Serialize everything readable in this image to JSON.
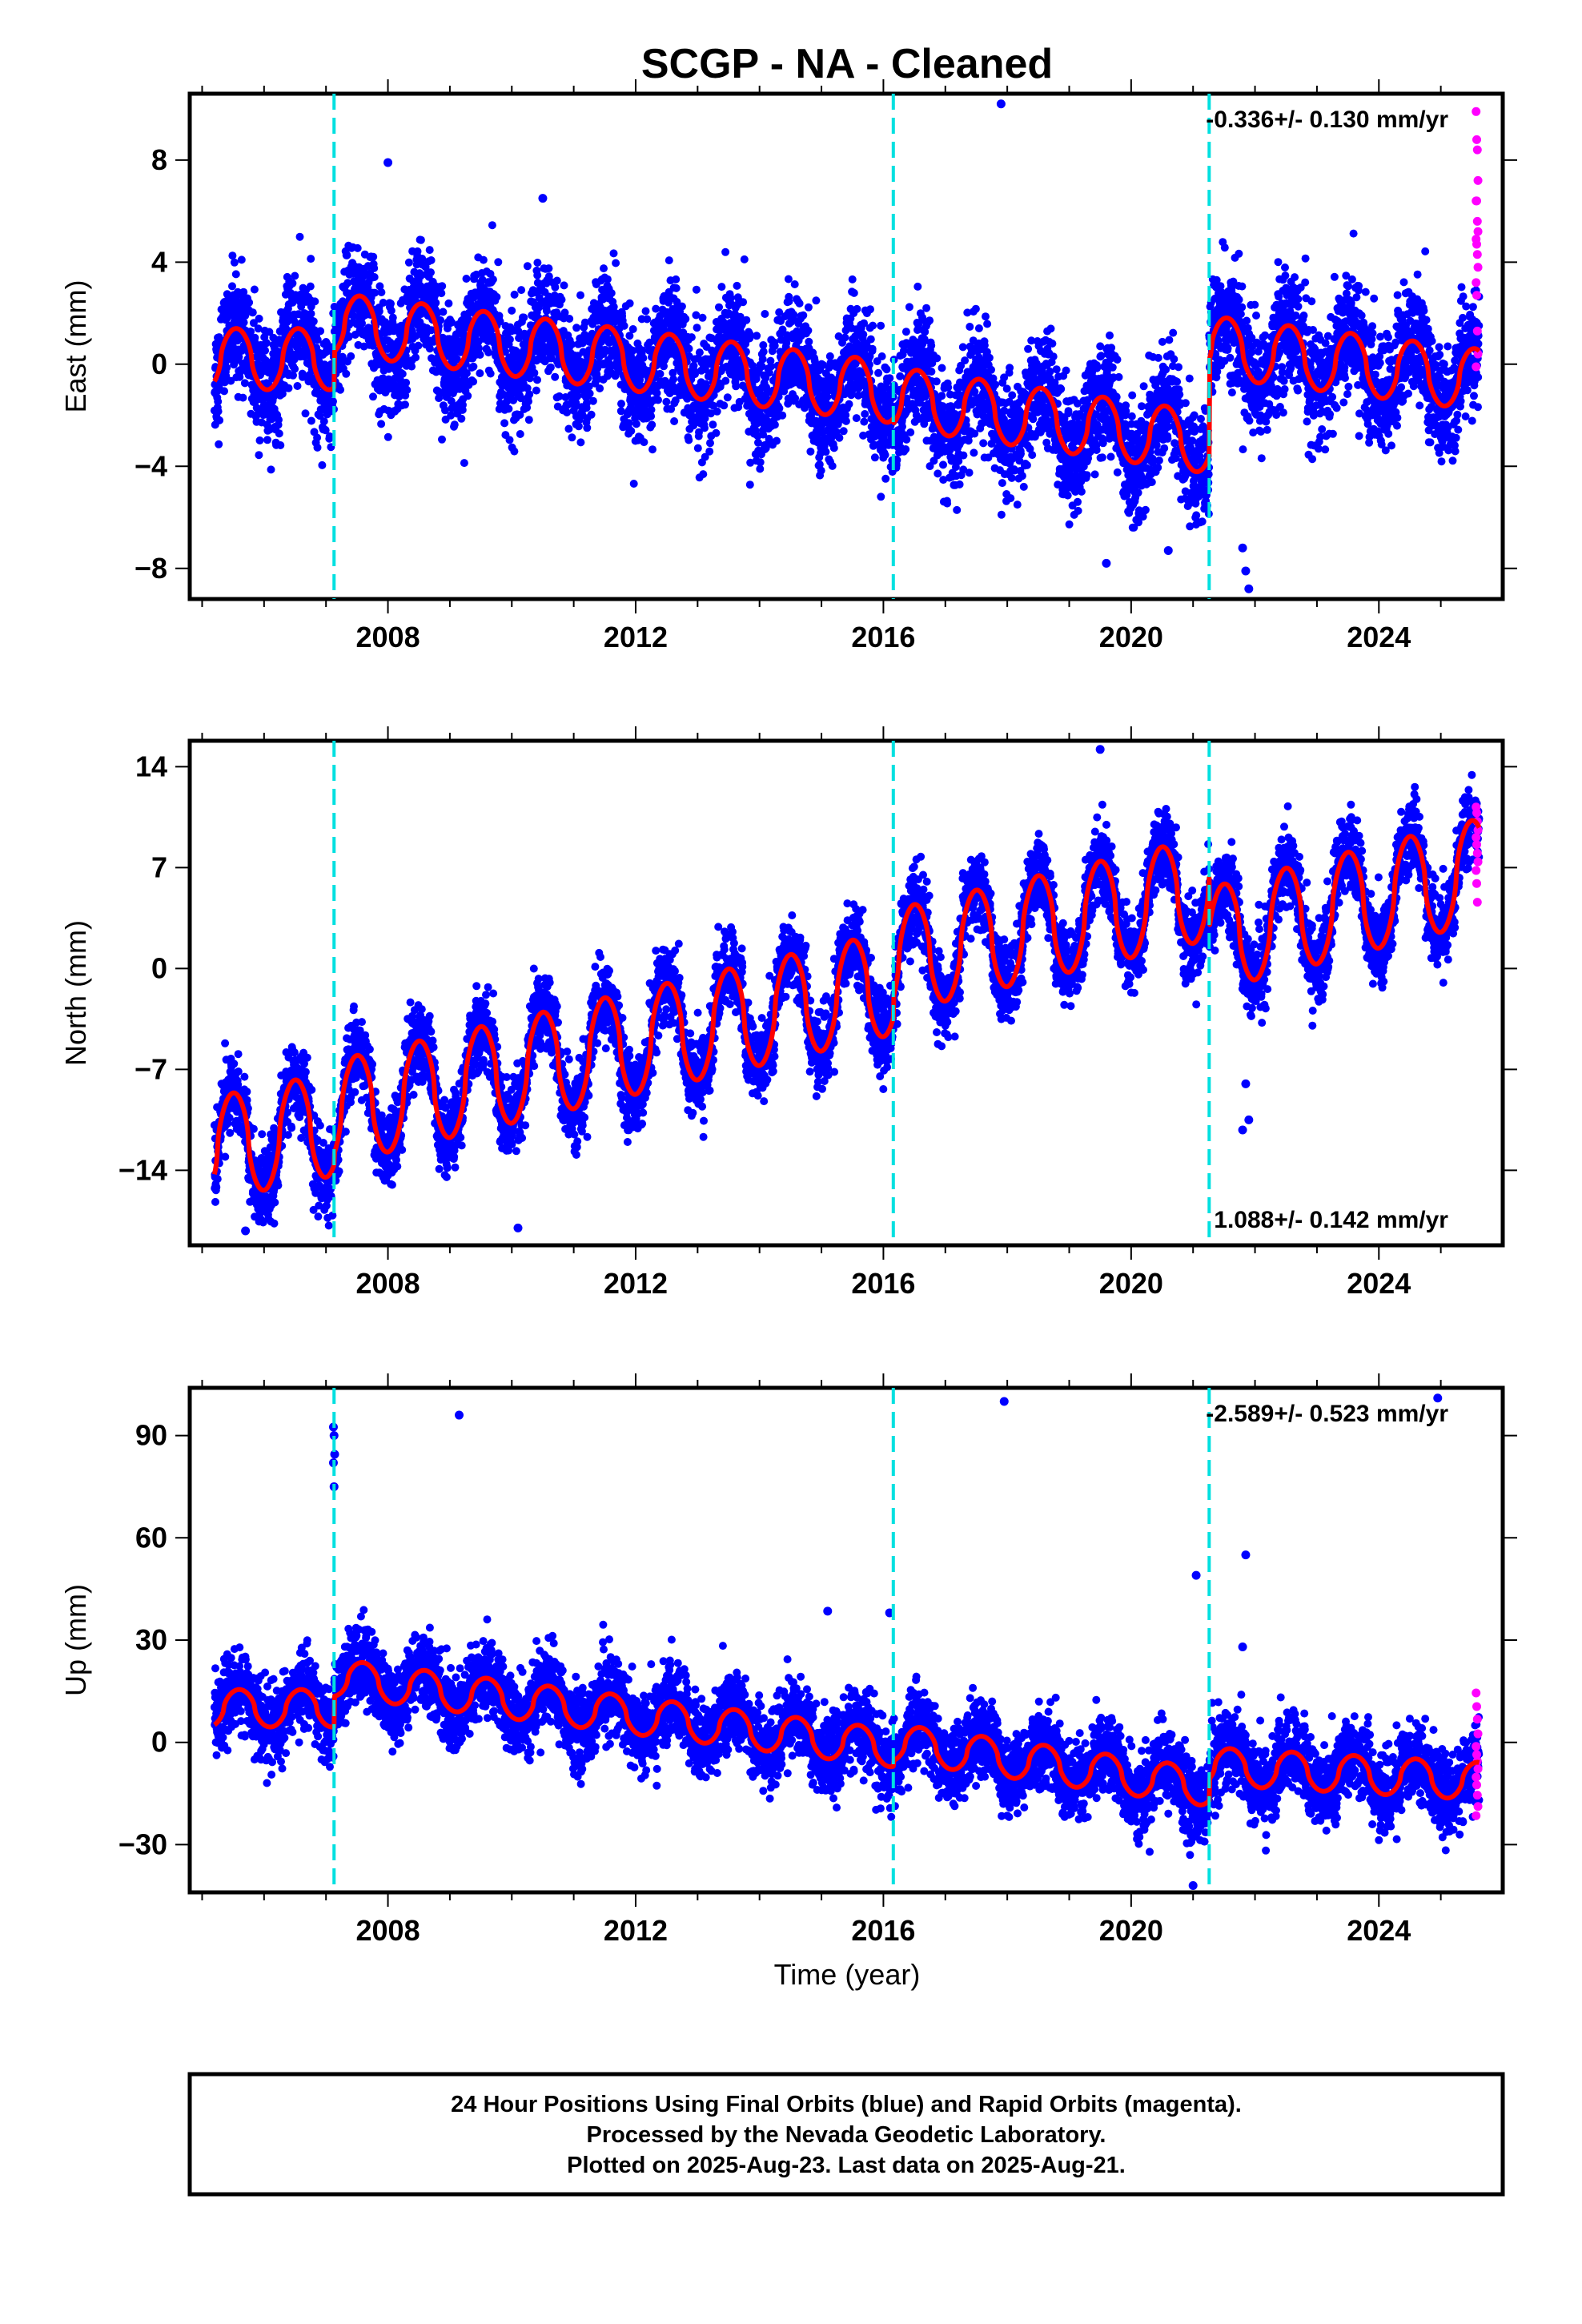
{
  "chart_data": {
    "title": "SCGP  - NA - Cleaned",
    "xlabel": "Time (year)",
    "x_ticks": [
      "2008",
      "2012",
      "2016",
      "2020",
      "2024"
    ],
    "x_tick_values": [
      2008,
      2012,
      2016,
      2020,
      2024
    ],
    "xlim": [
      2004.8,
      2026.0
    ],
    "series_names": [
      "Final Orbits (blue)",
      "Rapid Orbits (magenta)",
      "Model fit (red)"
    ],
    "equipment_change_epochs": [
      2007.13,
      2016.16,
      2021.26
    ],
    "colors": {
      "final": "#0000ff",
      "rapid": "#ff00ff",
      "model": "#ff0000",
      "breaks": "#00e0e0"
    },
    "panels": [
      {
        "type": "scatter",
        "ylabel": "East (mm)",
        "yticks": [
          "8",
          "4",
          "0",
          "−4",
          "−8"
        ],
        "ytick_values": [
          8,
          4,
          0,
          -4,
          -8
        ],
        "ylim": [
          -9.2,
          10.6
        ],
        "rate_text": "-0.336+/- 0.130 mm/yr",
        "rate_position": "top-right",
        "model": {
          "segments": [
            {
              "start": 2005.2,
              "end": 2007.13,
              "offset": 0.2,
              "trend": 0.0
            },
            {
              "start": 2007.13,
              "end": 2016.16,
              "offset": 1.6,
              "trend": -0.3
            },
            {
              "start": 2016.16,
              "end": 2021.26,
              "offset": -1.3,
              "trend": -0.35
            },
            {
              "start": 2021.26,
              "end": 2025.65,
              "offset": 0.7,
              "trend": -0.3
            }
          ],
          "annual_amplitude": 1.2,
          "annual_phase_year": 0.55,
          "scatter_sigma": 1.1
        },
        "rapid_values": [
          9.9,
          8.8,
          8.4,
          7.2,
          6.4,
          6.4,
          5.6,
          5.2,
          4.9,
          4.7,
          4.3,
          3.8,
          3.2,
          2.7,
          1.3,
          0.4,
          -0.1
        ],
        "outliers": [
          [
            2017.9,
            10.2
          ],
          [
            2008.0,
            7.9
          ],
          [
            2010.5,
            6.5
          ],
          [
            2021.8,
            -7.2
          ],
          [
            2021.85,
            -8.1
          ],
          [
            2021.9,
            -8.8
          ],
          [
            2019.6,
            -7.8
          ],
          [
            2020.6,
            -7.3
          ]
        ]
      },
      {
        "type": "scatter",
        "ylabel": "North (mm)",
        "yticks": [
          "14",
          "7",
          "0",
          "−7",
          "−14"
        ],
        "ytick_values": [
          14,
          7,
          0,
          -7,
          -14
        ],
        "ylim": [
          -19.2,
          15.8
        ],
        "rate_text": "1.088+/- 0.142 mm/yr",
        "rate_position": "bottom-right",
        "model": {
          "segments": [
            {
              "start": 2005.2,
              "end": 2007.13,
              "offset": -12.5,
              "trend": 0.9
            },
            {
              "start": 2007.13,
              "end": 2016.16,
              "offset": -10.0,
              "trend": 1.0
            },
            {
              "start": 2016.16,
              "end": 2021.26,
              "offset": 0.5,
              "trend": 1.0
            },
            {
              "start": 2021.26,
              "end": 2025.65,
              "offset": 2.0,
              "trend": 1.1
            }
          ],
          "annual_amplitude": 3.6,
          "annual_phase_year": 0.5,
          "scatter_sigma": 1.3
        },
        "rapid_values": [
          11.2,
          10.8,
          10.2,
          9.6,
          9.1,
          8.6,
          8.0,
          7.4,
          6.8,
          5.9,
          4.6
        ],
        "outliers": [
          [
            2021.85,
            -8.0
          ],
          [
            2021.9,
            -10.5
          ],
          [
            2021.8,
            -11.2
          ],
          [
            2005.7,
            -18.2
          ],
          [
            2010.1,
            -18.0
          ],
          [
            2019.5,
            15.2
          ]
        ]
      },
      {
        "type": "scatter",
        "ylabel": "Up (mm)",
        "yticks": [
          "90",
          "60",
          "30",
          "0",
          "−30"
        ],
        "ytick_values": [
          90,
          60,
          30,
          0,
          -30
        ],
        "ylim": [
          -44,
          104
        ],
        "rate_text": "-2.589+/- 0.523 mm/yr",
        "rate_position": "top-right",
        "model": {
          "segments": [
            {
              "start": 2005.2,
              "end": 2007.13,
              "offset": 10.0,
              "trend": 0.0
            },
            {
              "start": 2007.13,
              "end": 2016.16,
              "offset": 19.0,
              "trend": -2.3
            },
            {
              "start": 2016.16,
              "end": 2021.26,
              "offset": 0.0,
              "trend": -2.6
            },
            {
              "start": 2021.26,
              "end": 2025.65,
              "offset": -7.0,
              "trend": -1.0
            }
          ],
          "annual_amplitude": 5.5,
          "annual_phase_year": 0.6,
          "scatter_sigma": 5.5
        },
        "rapid_values": [
          14.5,
          10.5,
          6.8,
          2.5,
          -1.2,
          -3.6,
          -5.5,
          -7.8,
          -10.2,
          -12.5,
          -15.5,
          -18.8,
          -21.5
        ],
        "outliers": [
          [
            2007.12,
            92.5
          ],
          [
            2007.13,
            90.0
          ],
          [
            2007.14,
            84.5
          ],
          [
            2007.12,
            82.0
          ],
          [
            2007.13,
            75.0
          ],
          [
            2009.15,
            96.0
          ],
          [
            2017.95,
            100.0
          ],
          [
            2024.95,
            101.0
          ],
          [
            2021.05,
            49.0
          ],
          [
            2021.85,
            55.0
          ],
          [
            2021.8,
            28.0
          ],
          [
            2016.1,
            38.0
          ],
          [
            2015.1,
            38.5
          ],
          [
            2021.0,
            -42.0
          ]
        ]
      }
    ]
  },
  "footer": {
    "line1": "24 Hour Positions Using Final Orbits (blue) and Rapid Orbits (magenta).",
    "line2": "Processed by the Nevada Geodetic Laboratory.",
    "line3": "Plotted on 2025-Aug-23. Last data on 2025-Aug-21."
  }
}
